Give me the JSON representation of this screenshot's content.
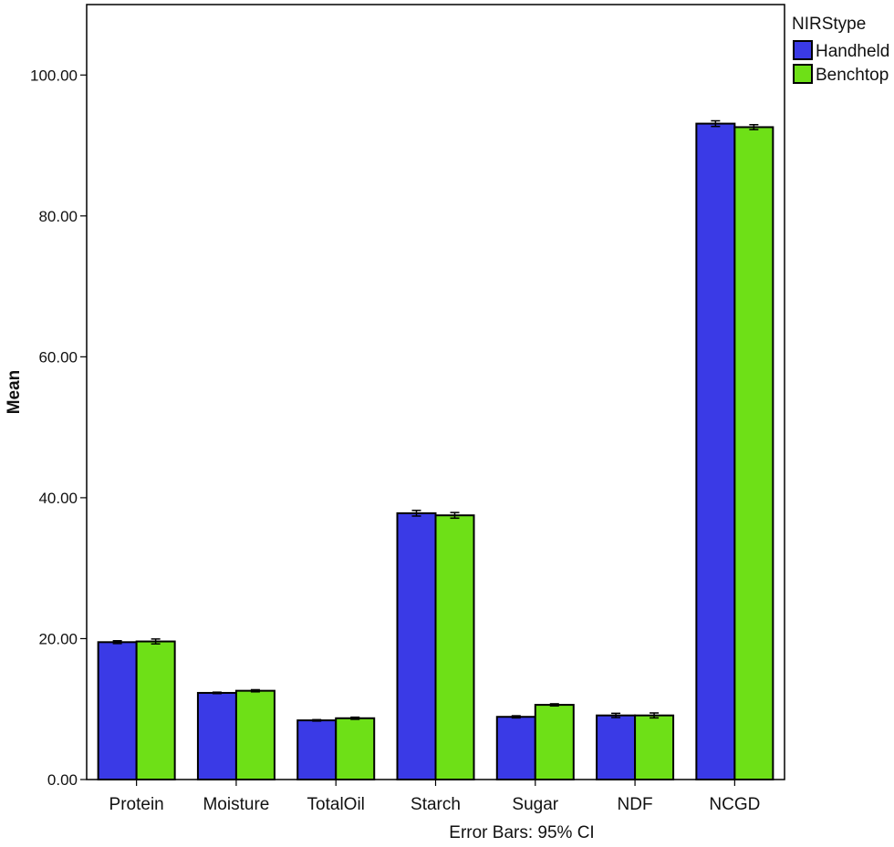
{
  "chart_data": {
    "type": "bar",
    "ylabel": "Mean",
    "ylim": [
      0,
      110
    ],
    "yticks": [
      "0.00",
      "20.00",
      "40.00",
      "60.00",
      "80.00",
      "100.00"
    ],
    "yticks_values": [
      0,
      20,
      40,
      60,
      80,
      100
    ],
    "categories": [
      "Protein",
      "Moisture",
      "TotalOil",
      "Starch",
      "Sugar",
      "NDF",
      "NCGD"
    ],
    "legend_title": "NIRStype",
    "legend_position": "top-right",
    "footnote": "Error Bars: 95% CI",
    "grid": false,
    "series": [
      {
        "name": "Handheld",
        "color": "#3a3ae6",
        "values": [
          19.5,
          12.3,
          8.4,
          37.8,
          8.9,
          9.1,
          93.1
        ],
        "ci": [
          0.2,
          0.1,
          0.1,
          0.4,
          0.15,
          0.3,
          0.4
        ]
      },
      {
        "name": "Benchtop",
        "color": "#6ee017",
        "values": [
          19.6,
          12.6,
          8.7,
          37.5,
          10.6,
          9.1,
          92.6
        ],
        "ci": [
          0.35,
          0.15,
          0.15,
          0.4,
          0.15,
          0.35,
          0.35
        ]
      }
    ]
  }
}
